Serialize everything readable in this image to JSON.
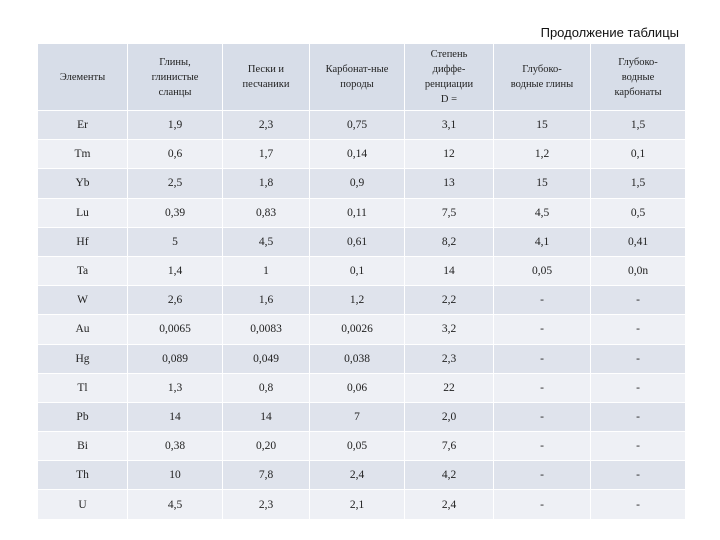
{
  "caption": "Продолжение таблицы",
  "headers": [
    "Элементы",
    "Глины,\nглинистые\nсланцы",
    "Пески и\nпесчаники",
    "Карбонат-ные\nпороды",
    "Степень\nдиффе-\nренциации\nD =",
    "Глубоко-\nводные глины",
    "Глубоко-\nводные\nкарбонаты"
  ],
  "rows": [
    [
      "Er",
      "1,9",
      "2,3",
      "0,75",
      "3,1",
      "15",
      "1,5"
    ],
    [
      "Tm",
      "0,6",
      "1,7",
      "0,14",
      "12",
      "1,2",
      "0,1"
    ],
    [
      "Yb",
      "2,5",
      "1,8",
      "0,9",
      "13",
      "15",
      "1,5"
    ],
    [
      "Lu",
      "0,39",
      "0,83",
      "0,11",
      "7,5",
      "4,5",
      "0,5"
    ],
    [
      "Hf",
      "5",
      "4,5",
      "0,61",
      "8,2",
      "4,1",
      "0,41"
    ],
    [
      "Ta",
      "1,4",
      "1",
      "0,1",
      "14",
      "0,05",
      "0,0n"
    ],
    [
      "W",
      "2,6",
      "1,6",
      "1,2",
      "2,2",
      "-",
      "-"
    ],
    [
      "Au",
      "0,0065",
      "0,0083",
      "0,0026",
      "3,2",
      "-",
      "-"
    ],
    [
      "Hg",
      "0,089",
      "0,049",
      "0,038",
      "2,3",
      "-",
      "-"
    ],
    [
      "Tl",
      "1,3",
      "0,8",
      "0,06",
      "22",
      "-",
      "-"
    ],
    [
      "Pb",
      "14",
      "14",
      "7",
      "2,0",
      "-",
      "-"
    ],
    [
      "Bi",
      "0,38",
      "0,20",
      "0,05",
      "7,6",
      "-",
      "-"
    ],
    [
      "Th",
      "10",
      "7,8",
      "2,4",
      "4,2",
      "-",
      "-"
    ],
    [
      "U",
      "4,5",
      "2,3",
      "2,1",
      "2,4",
      "-",
      "-"
    ]
  ],
  "colors": {
    "header_bg": "#d7dde8",
    "row_odd_bg": "#dfe3ec",
    "row_even_bg": "#eef0f5"
  }
}
